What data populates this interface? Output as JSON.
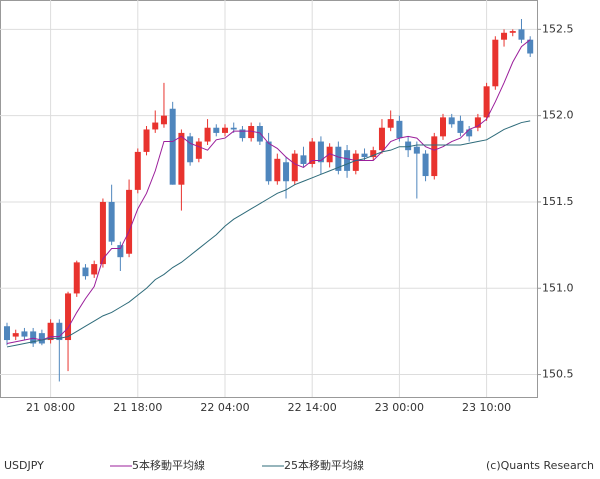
{
  "chart_data": {
    "type": "candlestick",
    "symbol": "USDJPY",
    "credit": "(c)Quants Research",
    "categories": [
      null,
      null,
      null,
      null,
      null,
      "21 08:00",
      null,
      null,
      null,
      null,
      null,
      null,
      null,
      null,
      null,
      "21 18:00",
      null,
      null,
      null,
      null,
      null,
      null,
      null,
      null,
      null,
      "22 04:00",
      null,
      null,
      null,
      null,
      null,
      null,
      null,
      null,
      null,
      "22 14:00",
      null,
      null,
      null,
      null,
      null,
      null,
      null,
      null,
      null,
      "23 00:00",
      null,
      null,
      null,
      null,
      null,
      null,
      null,
      null,
      null,
      "23 10:00",
      null,
      null,
      null,
      null,
      null
    ],
    "open": [
      150.78,
      150.72,
      150.75,
      150.75,
      150.74,
      150.7,
      150.8,
      150.7,
      150.97,
      151.12,
      151.08,
      151.14,
      151.5,
      151.25,
      151.2,
      151.57,
      151.79,
      151.92,
      151.95,
      152.04,
      151.6,
      151.88,
      151.75,
      151.85,
      151.93,
      151.9,
      151.93,
      151.92,
      151.87,
      151.94,
      151.85,
      151.62,
      151.73,
      151.62,
      151.77,
      151.72,
      151.85,
      151.73,
      151.82,
      151.8,
      151.68,
      151.78,
      151.76,
      151.8,
      151.93,
      151.97,
      151.85,
      151.82,
      151.78,
      151.65,
      151.88,
      151.99,
      151.97,
      151.92,
      151.93,
      151.99,
      152.17,
      152.44,
      152.48,
      152.5,
      152.44
    ],
    "high": [
      150.8,
      150.76,
      150.77,
      150.77,
      150.76,
      150.82,
      150.82,
      150.98,
      151.16,
      151.14,
      151.16,
      151.52,
      151.6,
      151.27,
      151.63,
      151.81,
      151.94,
      152.03,
      152.19,
      152.08,
      151.92,
      151.9,
      151.87,
      151.98,
      151.95,
      151.95,
      151.96,
      151.94,
      151.96,
      151.96,
      151.9,
      151.78,
      151.76,
      151.8,
      151.82,
      151.87,
      151.88,
      151.84,
      151.85,
      151.83,
      151.8,
      151.81,
      151.82,
      151.98,
      152.03,
      152.0,
      151.88,
      151.85,
      151.8,
      151.9,
      152.01,
      152.01,
      152.0,
      151.94,
      152.01,
      152.19,
      152.46,
      152.5,
      152.5,
      152.56,
      152.46
    ],
    "low": [
      150.67,
      150.7,
      150.7,
      150.66,
      150.67,
      150.68,
      150.46,
      150.52,
      150.95,
      151.05,
      151.06,
      151.12,
      151.25,
      151.1,
      151.18,
      151.55,
      151.77,
      151.9,
      151.93,
      151.6,
      151.45,
      151.71,
      151.73,
      151.83,
      151.88,
      151.88,
      151.9,
      151.85,
      151.85,
      151.83,
      151.6,
      151.6,
      151.52,
      151.6,
      151.7,
      151.7,
      151.66,
      151.7,
      151.66,
      151.64,
      151.66,
      151.74,
      151.74,
      151.78,
      151.91,
      151.85,
      151.76,
      151.52,
      151.62,
      151.63,
      151.86,
      151.93,
      151.88,
      151.85,
      151.91,
      151.97,
      152.15,
      152.4,
      152.46,
      152.42,
      152.34
    ],
    "close": [
      150.7,
      150.74,
      150.72,
      150.68,
      150.68,
      150.8,
      150.7,
      150.97,
      151.15,
      151.07,
      151.14,
      151.5,
      151.27,
      151.18,
      151.57,
      151.79,
      151.92,
      151.96,
      152.0,
      151.6,
      151.9,
      151.73,
      151.85,
      151.93,
      151.9,
      151.93,
      151.92,
      151.87,
      151.94,
      151.85,
      151.62,
      151.75,
      151.62,
      151.78,
      151.72,
      151.85,
      151.73,
      151.82,
      151.68,
      151.68,
      151.78,
      151.76,
      151.8,
      151.93,
      151.98,
      151.87,
      151.8,
      151.78,
      151.65,
      151.88,
      151.99,
      151.95,
      151.9,
      151.88,
      151.99,
      152.17,
      152.44,
      152.48,
      152.49,
      152.44,
      152.36
    ],
    "up_color": "#e8332e",
    "down_color": "#4f86bd",
    "series": [
      {
        "name": "5本移動平均線",
        "color": "#9b1f9b",
        "values": [
          150.68,
          150.69,
          150.7,
          150.71,
          150.7,
          150.72,
          150.72,
          150.77,
          150.86,
          150.94,
          151.01,
          151.17,
          151.23,
          151.23,
          151.33,
          151.46,
          151.55,
          151.68,
          151.85,
          151.85,
          151.88,
          151.84,
          151.82,
          151.8,
          151.86,
          151.87,
          151.91,
          151.91,
          151.91,
          151.9,
          151.84,
          151.81,
          151.76,
          151.72,
          151.7,
          151.74,
          151.74,
          151.78,
          151.76,
          151.75,
          151.74,
          151.74,
          151.74,
          151.79,
          151.85,
          151.87,
          151.88,
          151.87,
          151.82,
          151.8,
          151.82,
          151.85,
          151.87,
          151.92,
          151.94,
          151.98,
          152.08,
          152.19,
          152.31,
          152.4,
          152.44
        ]
      },
      {
        "name": "25本移動平均線",
        "color": "#2e6b7a",
        "values": [
          150.66,
          150.67,
          150.68,
          150.69,
          150.7,
          150.71,
          150.71,
          150.72,
          150.75,
          150.78,
          150.81,
          150.84,
          150.86,
          150.89,
          150.92,
          150.96,
          151.0,
          151.05,
          151.08,
          151.12,
          151.15,
          151.19,
          151.23,
          151.27,
          151.31,
          151.36,
          151.4,
          151.43,
          151.46,
          151.49,
          151.52,
          151.55,
          151.57,
          151.6,
          151.62,
          151.64,
          151.66,
          151.68,
          151.7,
          151.72,
          151.74,
          151.75,
          151.77,
          151.79,
          151.8,
          151.82,
          151.82,
          151.83,
          151.83,
          151.83,
          151.83,
          151.83,
          151.83,
          151.84,
          151.85,
          151.86,
          151.89,
          151.92,
          151.94,
          151.96,
          151.97
        ]
      }
    ],
    "ylim": [
      150.37,
      152.67
    ],
    "yticks": [
      150.5,
      {
        "value": 151.0,
        "label": "151.0"
      },
      151.5,
      {
        "value": 152.0,
        "label": "152.0"
      },
      152.5
    ],
    "grid": true
  }
}
